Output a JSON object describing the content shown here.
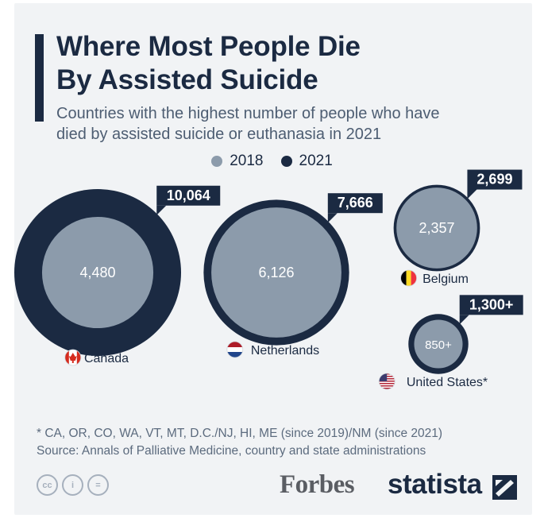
{
  "title_line1": "Where Most People Die",
  "title_line2": "By Assisted Suicide",
  "subtitle_line1": "Countries with the highest number of people who have",
  "subtitle_line2": "died by assisted suicide or euthanasia in 2021",
  "colors": {
    "series_2018": "#8c9bab",
    "series_2021": "#1b2a42",
    "accent": "#1b2a42",
    "label_text_inner": "#ffffff"
  },
  "chart_data": {
    "type": "bubble",
    "title": "Where Most People Die By Assisted Suicide",
    "series": [
      {
        "name": "2018"
      },
      {
        "name": "2021"
      }
    ],
    "countries": [
      {
        "name": "Canada",
        "flag": "canada-flag",
        "value_2018": 4480,
        "value_2021": 10064,
        "label_2018": "4,480",
        "label_2021": "10,064"
      },
      {
        "name": "Netherlands",
        "flag": "netherlands-flag",
        "value_2018": 6126,
        "value_2021": 7666,
        "label_2018": "6,126",
        "label_2021": "7,666"
      },
      {
        "name": "Belgium",
        "flag": "belgium-flag",
        "value_2018": 2357,
        "value_2021": 2699,
        "label_2018": "2,357",
        "label_2021": "2,699"
      },
      {
        "name": "United States*",
        "flag": "usa-flag",
        "value_2018": 850,
        "value_2021": 1300,
        "label_2018": "850+",
        "label_2021": "1,300+"
      }
    ]
  },
  "footnote": "* CA, OR, CO, WA, VT, MT, D.C./NJ, HI, ME (since 2019)/NM (since 2021)",
  "source": "Source: Annals of Palliative Medicine, country and state administrations",
  "license_icons": [
    {
      "name": "cc-icon",
      "text": "cc"
    },
    {
      "name": "attribution-icon",
      "text": "i"
    },
    {
      "name": "no-derivatives-icon",
      "text": "="
    }
  ],
  "brands": {
    "forbes": "Forbes",
    "statista": "statista"
  }
}
